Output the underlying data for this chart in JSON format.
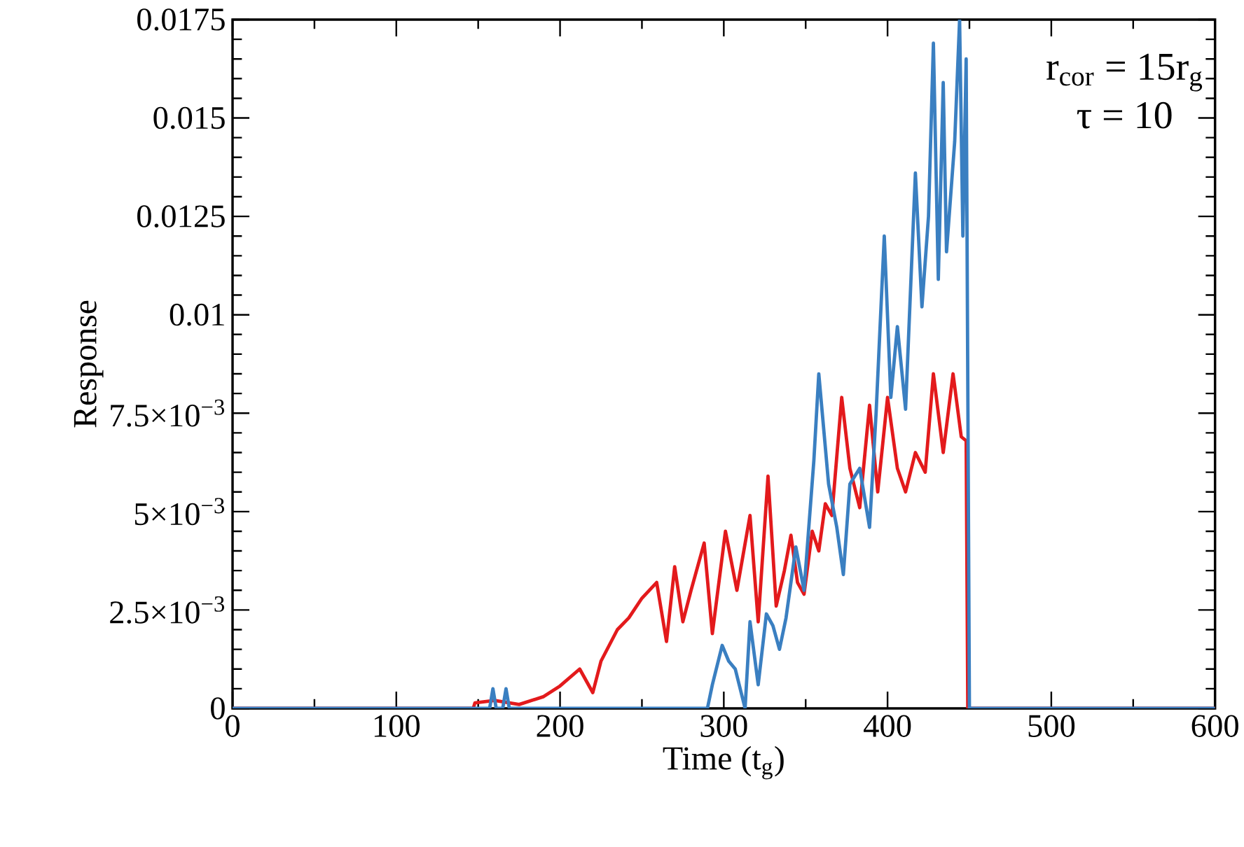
{
  "chart_data": {
    "type": "line",
    "xlabel": "Time (t$_{g}$)",
    "ylabel": "Response",
    "xlim": [
      0,
      600
    ],
    "ylim": [
      0,
      0.0175
    ],
    "xticks": [
      0,
      100,
      200,
      300,
      400,
      500,
      600
    ],
    "yticks": [
      0,
      {
        "value": 0.0025,
        "label": "2.5×10$^{−3}$"
      },
      {
        "value": 0.005,
        "label": "5×10$^{−3}$"
      },
      {
        "value": 0.0075,
        "label": "7.5×10$^{−3}$"
      },
      0.01,
      0.0125,
      0.015,
      0.0175
    ],
    "annotations": [
      "r$_{cor}$ = 15r$_{g}$",
      "τ = 10"
    ],
    "series": [
      {
        "color": "#e31a1c",
        "x": [
          0,
          147,
          148,
          160,
          175,
          190,
          200,
          212,
          220,
          225,
          235,
          242,
          250,
          259,
          265,
          270,
          275,
          280,
          288,
          293,
          301,
          308,
          316,
          321,
          327,
          332,
          337,
          341,
          345,
          349,
          354,
          358,
          362,
          366,
          372,
          377,
          383,
          389,
          394,
          400,
          406,
          411,
          417,
          423,
          428,
          434,
          440,
          445,
          448,
          449,
          600
        ],
        "values": [
          0,
          0,
          0.00014,
          0.0002,
          0.0001,
          0.0003,
          0.00057,
          0.001,
          0.0004,
          0.0012,
          0.002,
          0.0023,
          0.0028,
          0.0032,
          0.0017,
          0.0036,
          0.0022,
          0.003,
          0.0042,
          0.0019,
          0.0045,
          0.003,
          0.0049,
          0.0022,
          0.0059,
          0.0026,
          0.0035,
          0.0044,
          0.0032,
          0.0029,
          0.0045,
          0.004,
          0.0052,
          0.0049,
          0.0079,
          0.0061,
          0.0051,
          0.0077,
          0.0055,
          0.0079,
          0.0061,
          0.0055,
          0.0065,
          0.006,
          0.0085,
          0.0065,
          0.0085,
          0.0069,
          0.0068,
          0,
          0
        ]
      },
      {
        "color": "#3a7fc1",
        "x": [
          0,
          157,
          159,
          161,
          165,
          167,
          169,
          290,
          293,
          299,
          303,
          307,
          313,
          316,
          321,
          326,
          330,
          334,
          338,
          344,
          349,
          355,
          358,
          364,
          369,
          373,
          377,
          383,
          389,
          393,
          398,
          402,
          406,
          411,
          417,
          421,
          425,
          428,
          431,
          434,
          436,
          441,
          444,
          446,
          448,
          450,
          600
        ],
        "values": [
          0,
          0,
          0.0005,
          0,
          0,
          0.0005,
          0,
          0,
          0.0006,
          0.0016,
          0.0012,
          0.001,
          0,
          0.0022,
          0.0006,
          0.0024,
          0.0021,
          0.0015,
          0.0023,
          0.0041,
          0.003,
          0.0063,
          0.0085,
          0.0057,
          0.0046,
          0.0034,
          0.0057,
          0.0061,
          0.0046,
          0.0075,
          0.012,
          0.0079,
          0.0097,
          0.0076,
          0.0136,
          0.0102,
          0.0125,
          0.0169,
          0.0109,
          0.0159,
          0.0116,
          0.0144,
          0.0175,
          0.012,
          0.0165,
          0,
          0
        ]
      }
    ]
  }
}
